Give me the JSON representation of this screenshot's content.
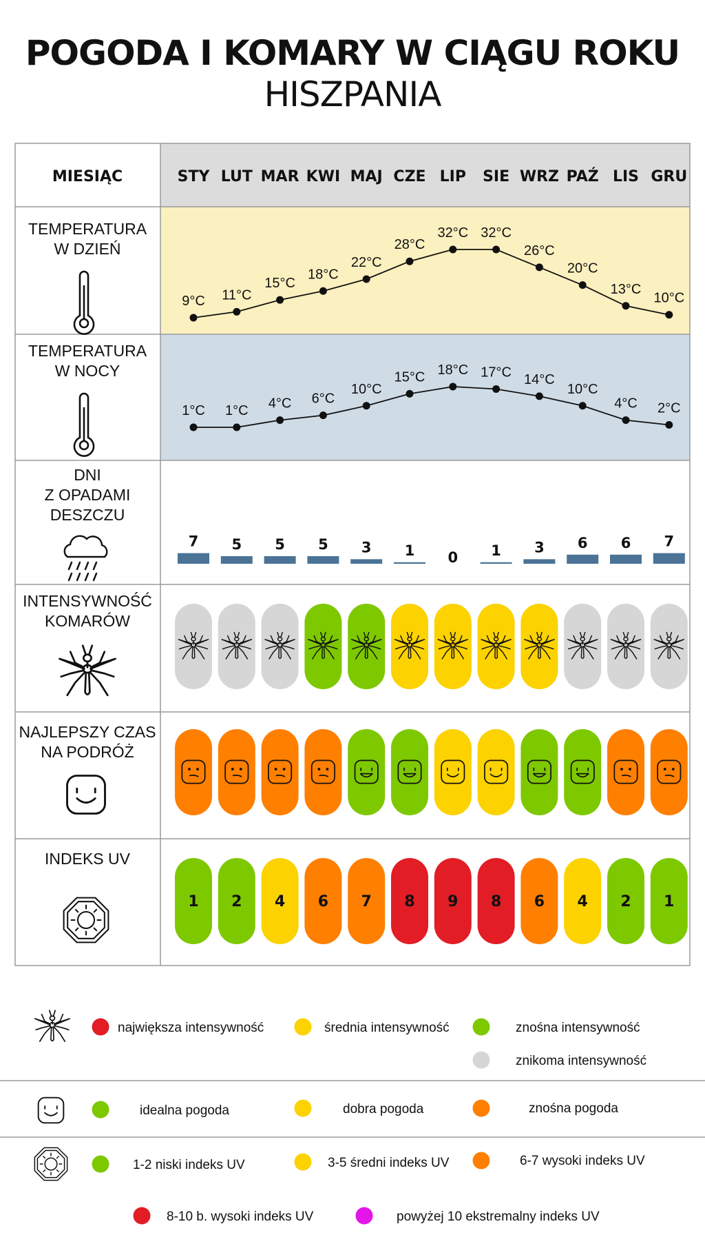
{
  "title": "POGODA I KOMARY W CIĄGU ROKU",
  "subtitle": "HISZPANIA",
  "row_labels": {
    "month": "MIESIĄC",
    "day_temp": [
      "TEMPERATURA",
      "W DZIEŃ"
    ],
    "night_temp": [
      "TEMPERATURA",
      "W NOCY"
    ],
    "rain": [
      "DNI",
      "Z OPADAMI",
      "DESZCZU"
    ],
    "mosquito": [
      "INTENSYWNOŚĆ",
      "KOMARÓW"
    ],
    "travel": [
      "NAJLEPSZY CZAS",
      "NA PODRÓŻ"
    ],
    "uv": [
      "INDEKS UV"
    ]
  },
  "icons": {
    "day_temp": "thermometer-icon",
    "night_temp": "thermometer-icon",
    "rain": "rain-cloud-icon",
    "mosquito": "mosquito-icon",
    "travel": "smiley-face-icon",
    "uv": "uv-sun-icon"
  },
  "colors": {
    "green": "#7ec800",
    "yellow": "#fcd200",
    "orange": "#ff7f00",
    "red": "#e21d25",
    "gray": "#d6d6d6",
    "magenta": "#e415e8",
    "header_bg": "#dcdcdc",
    "day_bg": "#fbf0bf",
    "night_bg": "#cfdce6",
    "rain_bar": "#4a7396"
  },
  "chart_data": {
    "type": "table",
    "months": [
      "STY",
      "LUT",
      "MAR",
      "KWI",
      "MAJ",
      "CZE",
      "LIP",
      "SIE",
      "WRZ",
      "PAŹ",
      "LIS",
      "GRU"
    ],
    "day_temp": {
      "values": [
        9,
        11,
        15,
        18,
        22,
        28,
        32,
        32,
        26,
        20,
        13,
        10
      ],
      "labels": [
        "9°C",
        "11°C",
        "15°C",
        "18°C",
        "22°C",
        "28°C",
        "32°C",
        "32°C",
        "26°C",
        "20°C",
        "13°C",
        "10°C"
      ]
    },
    "night_temp": {
      "values": [
        1,
        1,
        4,
        6,
        10,
        15,
        18,
        17,
        14,
        10,
        4,
        2
      ],
      "labels": [
        "1°C",
        "1°C",
        "4°C",
        "6°C",
        "10°C",
        "15°C",
        "18°C",
        "17°C",
        "14°C",
        "10°C",
        "4°C",
        "2°C"
      ]
    },
    "rain_days": {
      "values": [
        7,
        5,
        5,
        5,
        3,
        1,
        0,
        1,
        3,
        6,
        6,
        7
      ],
      "labels": [
        "7",
        "5",
        "5",
        "5",
        "3",
        "1",
        "0",
        "1",
        "3",
        "6",
        "6",
        "7"
      ]
    },
    "mosquito_intensity": [
      "gray",
      "gray",
      "gray",
      "green",
      "green",
      "yellow",
      "yellow",
      "yellow",
      "yellow",
      "gray",
      "gray",
      "gray"
    ],
    "travel_rating": [
      "orange",
      "orange",
      "orange",
      "orange",
      "green",
      "green",
      "yellow",
      "yellow",
      "green",
      "green",
      "orange",
      "orange"
    ],
    "uv_index": {
      "values": [
        1,
        2,
        4,
        6,
        7,
        8,
        9,
        8,
        6,
        4,
        2,
        1
      ],
      "labels": [
        "1",
        "2",
        "4",
        "6",
        "7",
        "8",
        "9",
        "8",
        "6",
        "4",
        "2",
        "1"
      ],
      "colors": [
        "green",
        "green",
        "yellow",
        "orange",
        "orange",
        "red",
        "red",
        "red",
        "orange",
        "yellow",
        "green",
        "green"
      ]
    }
  },
  "legend": {
    "mosquito": [
      {
        "color": "red",
        "label": "największa intensywność"
      },
      {
        "color": "yellow",
        "label": "średnia intensywność"
      },
      {
        "color": "green",
        "label": "znośna intensywność"
      },
      {
        "color": "gray",
        "label": "znikoma intensywność"
      }
    ],
    "weather": [
      {
        "color": "green",
        "label": "idealna pogoda"
      },
      {
        "color": "yellow",
        "label": "dobra pogoda"
      },
      {
        "color": "orange",
        "label": "znośna pogoda"
      }
    ],
    "uv": [
      {
        "color": "green",
        "label": "1-2 niski indeks UV"
      },
      {
        "color": "yellow",
        "label": "3-5 średni indeks UV"
      },
      {
        "color": "orange",
        "label": "6-7 wysoki indeks UV"
      },
      {
        "color": "red",
        "label": "8-10 b. wysoki indeks UV"
      },
      {
        "color": "magenta",
        "label": "powyżej 10 ekstremalny indeks UV"
      }
    ]
  }
}
